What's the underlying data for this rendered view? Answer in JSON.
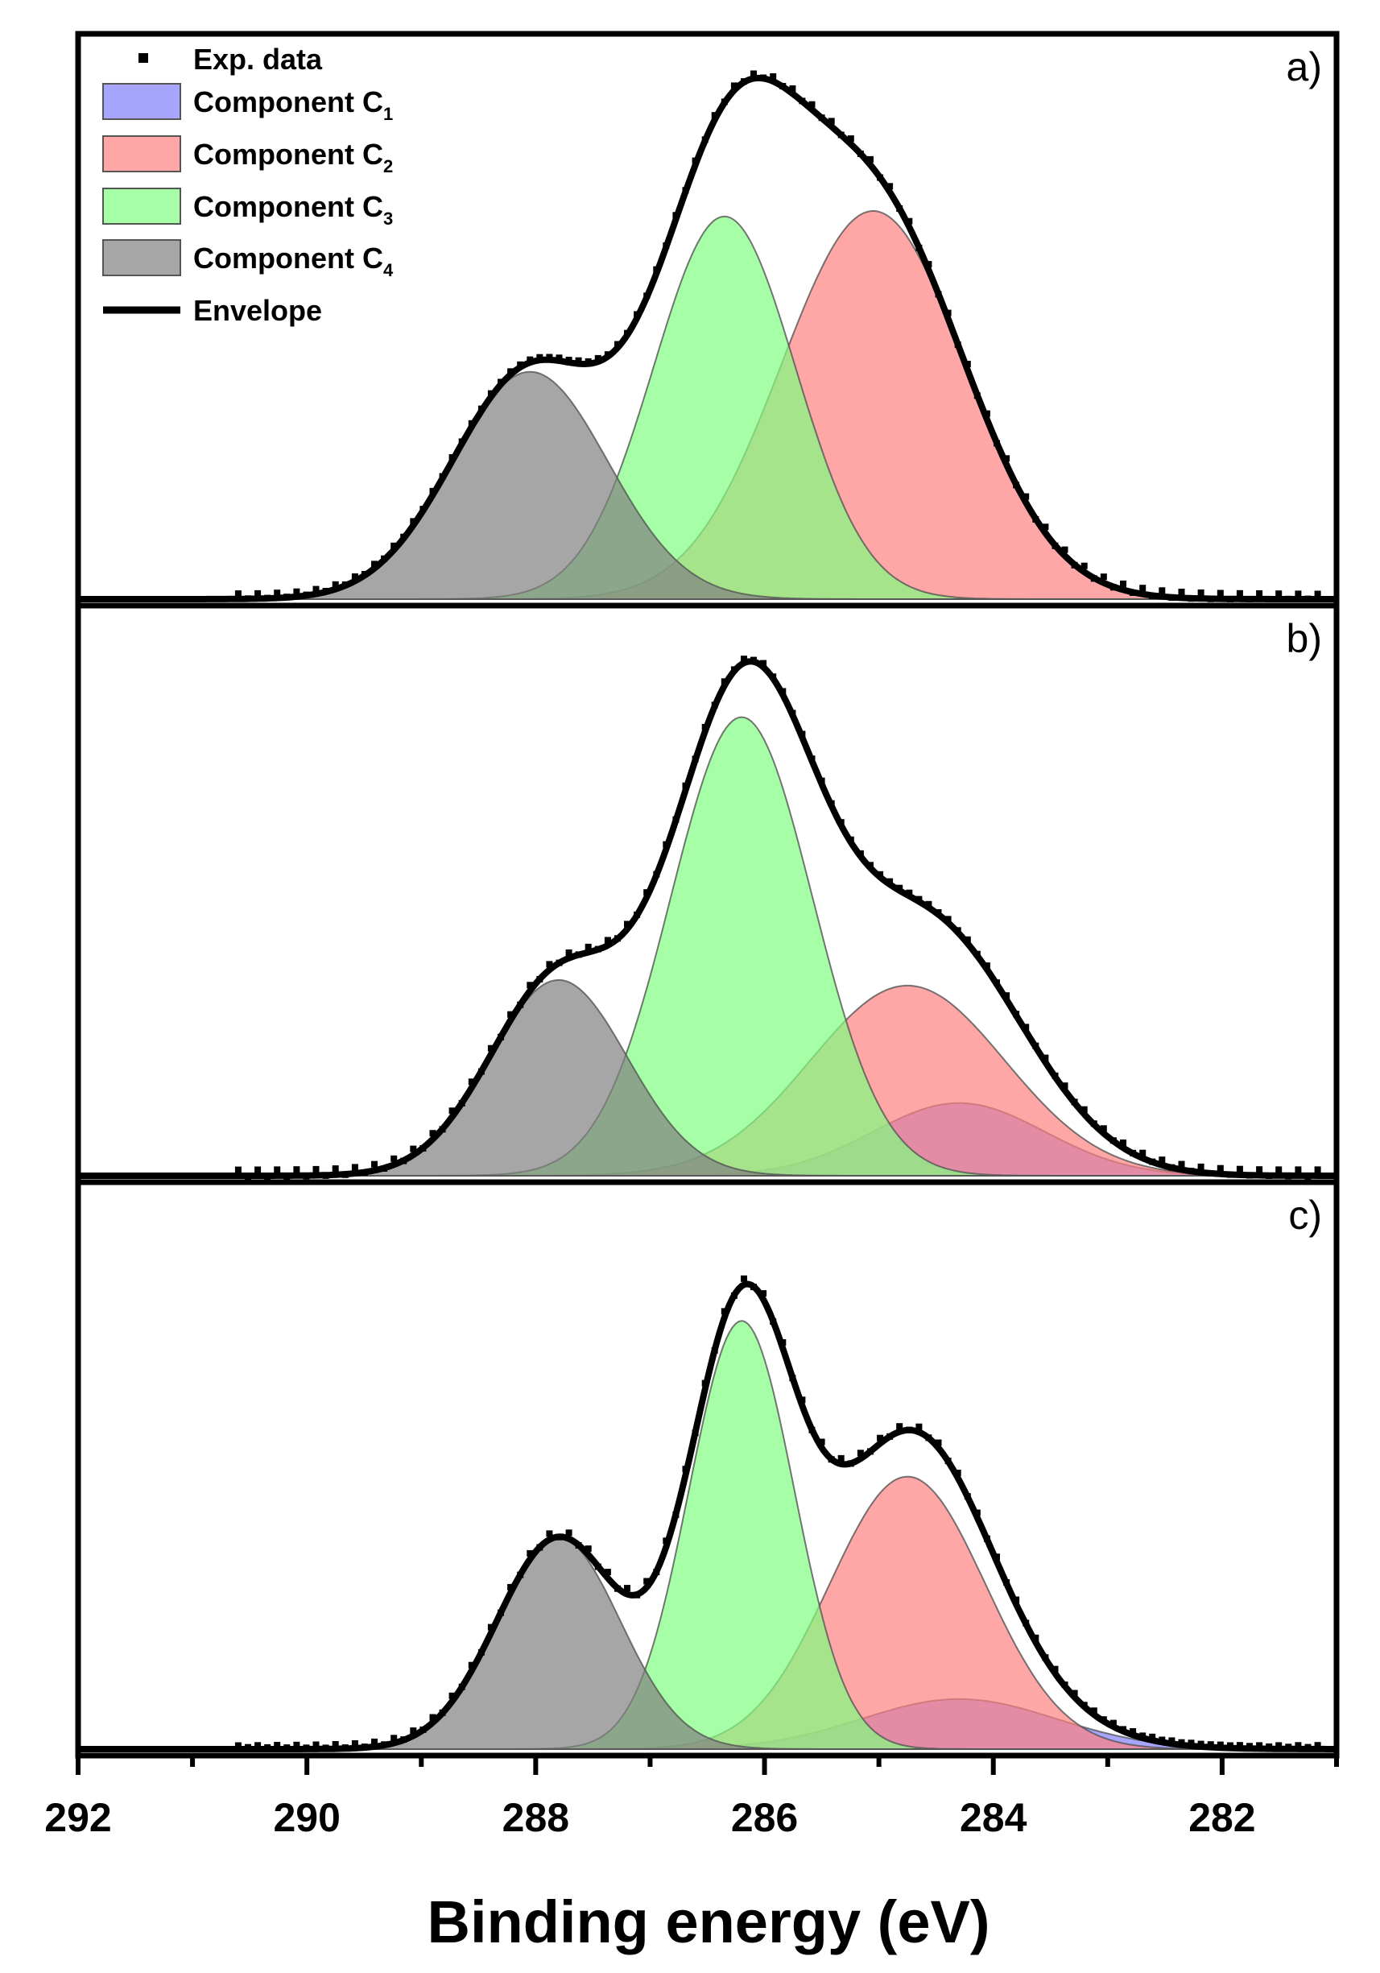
{
  "chart_data": {
    "type": "area",
    "title": "",
    "xlabel": "Binding energy (eV)",
    "ylabel": "",
    "xlim": [
      292,
      281
    ],
    "x_reversed": true,
    "x_ticks": [
      292,
      290,
      288,
      286,
      284,
      282
    ],
    "legend": {
      "placement": "top-left",
      "entries": [
        {
          "kind": "marker",
          "label": "Exp. data",
          "sub": ""
        },
        {
          "kind": "patch",
          "label": "Component C",
          "sub": "1",
          "color": "#8080ff"
        },
        {
          "kind": "patch",
          "label": "Component C",
          "sub": "2",
          "color": "#ff8080"
        },
        {
          "kind": "patch",
          "label": "Component C",
          "sub": "3",
          "color": "#80ff80"
        },
        {
          "kind": "patch",
          "label": "Component C",
          "sub": "4",
          "color": "#808080"
        },
        {
          "kind": "line",
          "label": "Envelope",
          "sub": ""
        }
      ]
    },
    "panels": [
      {
        "label": "a)",
        "ymax": 1.0,
        "components": [
          {
            "name": "Component C2",
            "color": "#ff8080",
            "center": 285.05,
            "height": 0.7,
            "sigma": 0.8
          },
          {
            "name": "Component C3",
            "color": "#80ff80",
            "center": 286.35,
            "height": 0.69,
            "sigma": 0.62
          },
          {
            "name": "Component C4",
            "color": "#808080",
            "center": 288.05,
            "height": 0.41,
            "sigma": 0.68
          }
        ]
      },
      {
        "label": "b)",
        "ymax": 1.0,
        "components": [
          {
            "name": "Component C1",
            "color": "#8080ff",
            "center": 284.3,
            "height": 0.13,
            "sigma": 0.75
          },
          {
            "name": "Component C2",
            "color": "#ff8080",
            "center": 284.75,
            "height": 0.34,
            "sigma": 0.85
          },
          {
            "name": "Component C3",
            "color": "#80ff80",
            "center": 286.2,
            "height": 0.82,
            "sigma": 0.62
          },
          {
            "name": "Component C4",
            "color": "#808080",
            "center": 287.8,
            "height": 0.35,
            "sigma": 0.6
          }
        ]
      },
      {
        "label": "c)",
        "ymax": 1.0,
        "components": [
          {
            "name": "Component C1",
            "color": "#8080ff",
            "center": 284.3,
            "height": 0.09,
            "sigma": 0.85
          },
          {
            "name": "Component C2",
            "color": "#ff8080",
            "center": 284.75,
            "height": 0.49,
            "sigma": 0.68
          },
          {
            "name": "Component C3",
            "color": "#80ff80",
            "center": 286.2,
            "height": 0.77,
            "sigma": 0.46
          },
          {
            "name": "Component C4",
            "color": "#808080",
            "center": 287.8,
            "height": 0.38,
            "sigma": 0.54
          }
        ]
      }
    ]
  }
}
